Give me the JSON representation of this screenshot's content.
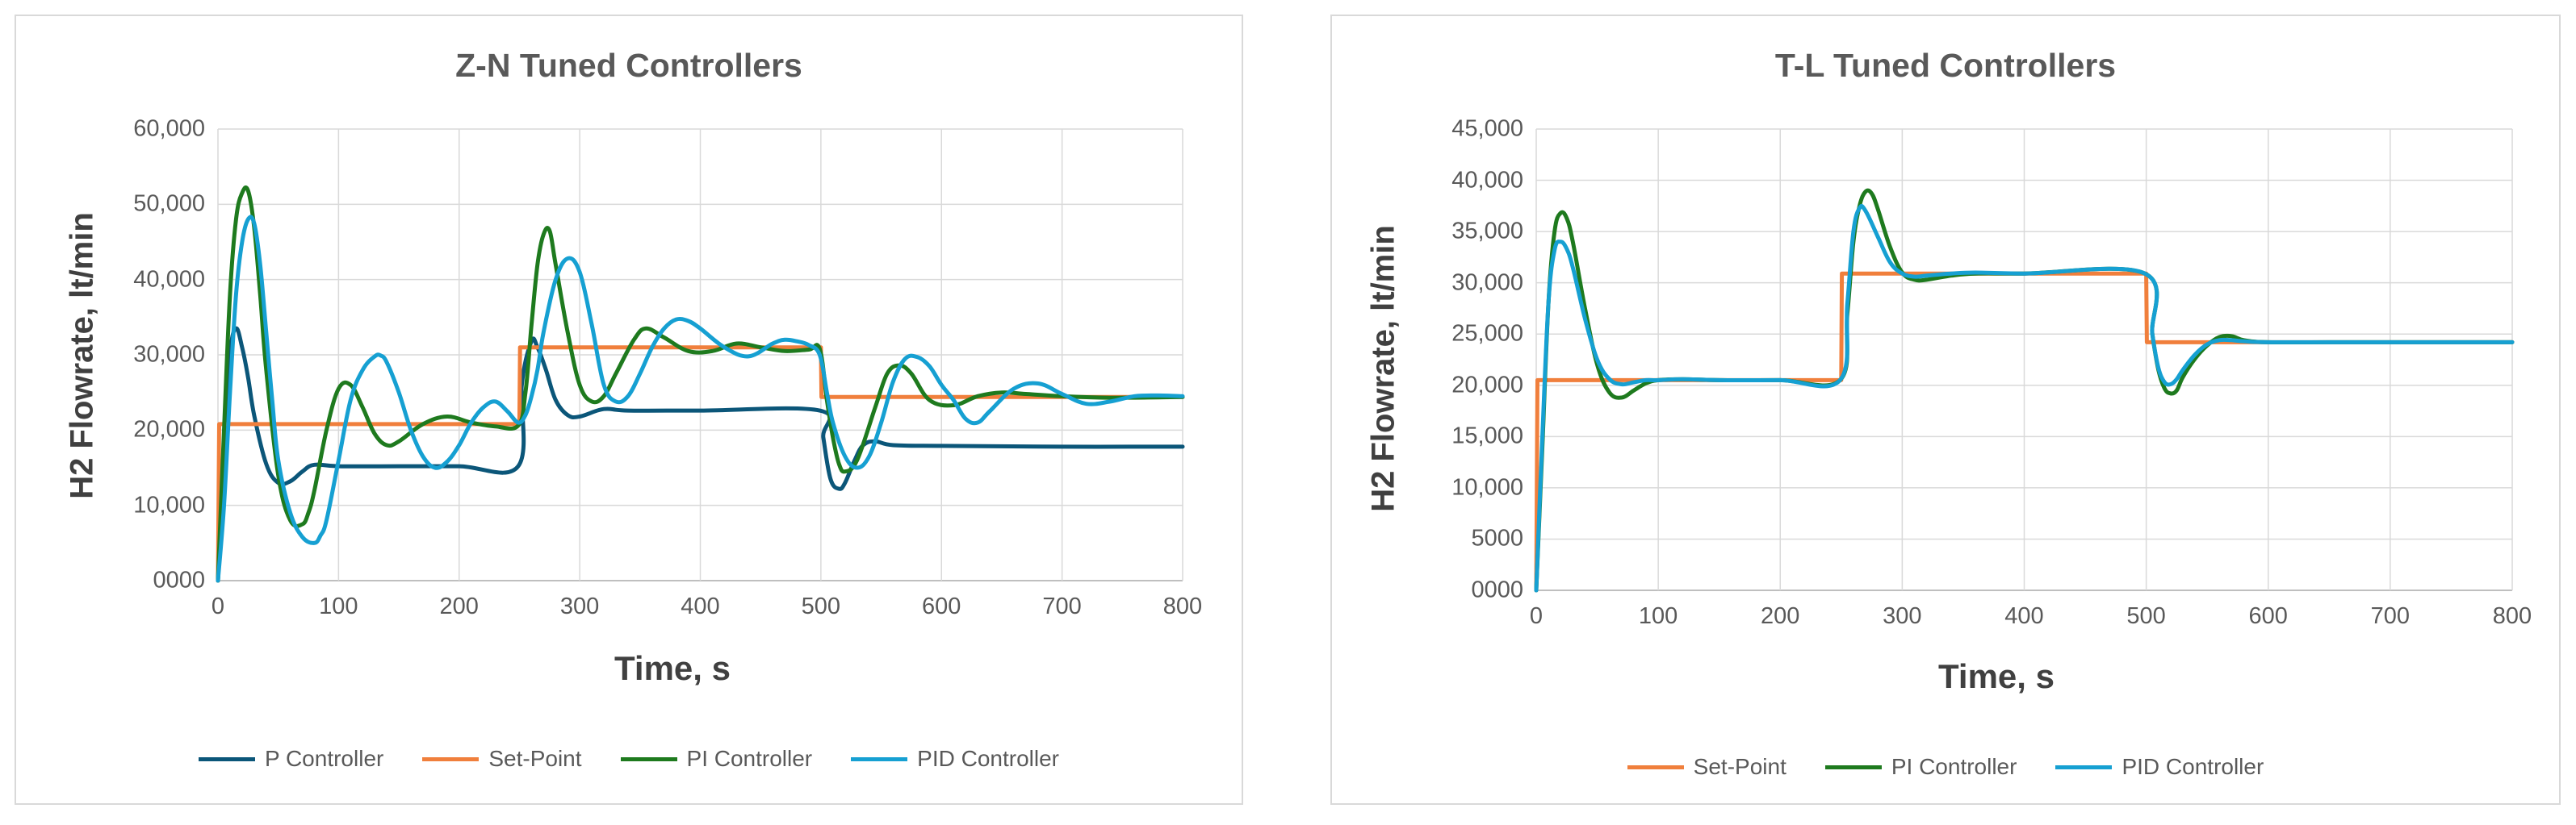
{
  "chart_data": [
    {
      "type": "line",
      "title": "Z-N Tuned Controllers",
      "xlabel": "Time, s",
      "ylabel": "H2 Flowrate, lt/min",
      "xlim": [
        0,
        800
      ],
      "ylim": [
        0,
        60000
      ],
      "xticks": [
        "0",
        "100",
        "200",
        "300",
        "400",
        "500",
        "600",
        "700",
        "800"
      ],
      "yticks": [
        "0000",
        "10,000",
        "20,000",
        "30,000",
        "40,000",
        "50,000",
        "60,000"
      ],
      "legend_position": "bottom",
      "series": [
        {
          "name": "P Controller",
          "color": "#0b5679",
          "x": [
            0,
            5,
            10,
            15,
            20,
            25,
            30,
            40,
            50,
            60,
            70,
            80,
            100,
            150,
            200,
            249,
            252,
            260,
            265,
            272,
            280,
            290,
            300,
            320,
            340,
            400,
            499,
            502,
            508,
            515,
            520,
            528,
            535,
            545,
            560,
            600,
            700,
            800
          ],
          "y": [
            0,
            17000,
            30000,
            33500,
            31000,
            27000,
            22000,
            15500,
            13000,
            13200,
            14500,
            15400,
            15200,
            15200,
            15200,
            15200,
            26000,
            31800,
            31000,
            28000,
            24000,
            22000,
            21800,
            22800,
            22600,
            22600,
            22600,
            19000,
            13500,
            12200,
            13000,
            16000,
            18000,
            18500,
            18000,
            17900,
            17800,
            17800
          ]
        },
        {
          "name": "Set-Point",
          "color": "#f07f3c",
          "x": [
            0,
            1,
            250,
            250.5,
            500,
            500.5,
            800
          ],
          "y": [
            0,
            20800,
            20800,
            31000,
            31000,
            24400,
            24400
          ]
        },
        {
          "name": "PI Controller",
          "color": "#1e7a1e",
          "x": [
            0,
            5,
            10,
            15,
            20,
            25,
            30,
            35,
            40,
            50,
            60,
            70,
            75,
            80,
            90,
            100,
            110,
            120,
            130,
            140,
            150,
            170,
            190,
            210,
            230,
            249,
            255,
            260,
            265,
            270,
            275,
            280,
            290,
            300,
            310,
            320,
            330,
            345,
            355,
            370,
            390,
            410,
            430,
            450,
            470,
            490,
            499,
            505,
            510,
            515,
            520,
            530,
            545,
            555,
            565,
            575,
            590,
            610,
            630,
            650,
            670,
            700,
            740,
            800
          ],
          "y": [
            0,
            20000,
            38000,
            48000,
            51500,
            51800,
            47000,
            38000,
            28000,
            14000,
            8000,
            7500,
            9000,
            12000,
            20000,
            25500,
            26000,
            23000,
            19500,
            18000,
            18500,
            20800,
            21800,
            21000,
            20500,
            20600,
            25000,
            34000,
            42000,
            46000,
            46500,
            42000,
            33000,
            26000,
            23800,
            24500,
            27500,
            32000,
            33500,
            32300,
            30500,
            30500,
            31500,
            31000,
            30500,
            30700,
            30800,
            24000,
            19000,
            15500,
            14500,
            16000,
            23000,
            27500,
            28600,
            27500,
            24000,
            23300,
            24500,
            25000,
            24800,
            24500,
            24300,
            24400
          ]
        },
        {
          "name": "PID Controller",
          "color": "#16a0d2",
          "x": [
            0,
            5,
            10,
            15,
            20,
            25,
            30,
            35,
            40,
            45,
            50,
            60,
            70,
            80,
            85,
            90,
            100,
            110,
            120,
            130,
            135,
            140,
            150,
            160,
            170,
            180,
            190,
            200,
            210,
            220,
            230,
            240,
            249,
            255,
            260,
            265,
            270,
            280,
            290,
            300,
            310,
            320,
            330,
            340,
            350,
            360,
            370,
            380,
            390,
            400,
            420,
            440,
            460,
            470,
            480,
            490,
            499,
            505,
            510,
            520,
            530,
            540,
            550,
            560,
            570,
            580,
            590,
            600,
            610,
            620,
            630,
            640,
            660,
            680,
            700,
            720,
            740,
            760,
            780,
            800
          ],
          "y": [
            0,
            10000,
            25000,
            38000,
            45000,
            48000,
            47500,
            42000,
            33000,
            24000,
            16000,
            9000,
            5800,
            5000,
            6000,
            8000,
            16000,
            24000,
            28000,
            29800,
            29900,
            29000,
            25000,
            20000,
            16500,
            15000,
            15800,
            18000,
            21000,
            23000,
            23800,
            22500,
            21000,
            22000,
            24500,
            28000,
            33000,
            40000,
            42800,
            41000,
            34000,
            26000,
            23800,
            24500,
            27500,
            31000,
            33500,
            34700,
            34500,
            33500,
            31000,
            29800,
            31500,
            32000,
            31800,
            31300,
            30000,
            25000,
            21000,
            16500,
            15000,
            16500,
            21000,
            26500,
            29500,
            29700,
            28500,
            26000,
            24000,
            21500,
            21000,
            22500,
            25500,
            26200,
            24800,
            23500,
            23800,
            24500,
            24600,
            24500
          ]
        }
      ]
    },
    {
      "type": "line",
      "title": "T-L Tuned Controllers",
      "xlabel": "Time, s",
      "ylabel": "H2 Flowrate, lt/min",
      "xlim": [
        0,
        800
      ],
      "ylim": [
        0,
        45000
      ],
      "xticks": [
        "0",
        "100",
        "200",
        "300",
        "400",
        "500",
        "600",
        "700",
        "800"
      ],
      "yticks": [
        "0000",
        "5000",
        "10,000",
        "15,000",
        "20,000",
        "25,000",
        "30,000",
        "35,000",
        "40,000",
        "45,000"
      ],
      "legend_position": "bottom",
      "series": [
        {
          "name": "Set-Point",
          "color": "#f07f3c",
          "x": [
            0,
            1,
            250,
            250.5,
            500,
            500.5,
            800
          ],
          "y": [
            0,
            20500,
            20500,
            30900,
            30900,
            24200,
            24200
          ]
        },
        {
          "name": "PI Controller",
          "color": "#1e7a1e",
          "x": [
            0,
            5,
            10,
            15,
            20,
            25,
            30,
            40,
            50,
            60,
            70,
            80,
            90,
            100,
            120,
            150,
            200,
            249,
            255,
            260,
            265,
            270,
            275,
            280,
            290,
            300,
            310,
            320,
            340,
            360,
            400,
            499,
            505,
            510,
            515,
            520,
            525,
            530,
            540,
            550,
            560,
            570,
            580,
            600,
            650,
            700,
            800
          ],
          "y": [
            0,
            14000,
            28000,
            35000,
            36800,
            36300,
            34000,
            27500,
            22000,
            19300,
            18800,
            19500,
            20200,
            20500,
            20600,
            20500,
            20500,
            20500,
            27000,
            34000,
            37500,
            38900,
            38700,
            37200,
            33500,
            31000,
            30300,
            30300,
            30700,
            30900,
            30900,
            30900,
            25000,
            21500,
            19700,
            19200,
            19500,
            20800,
            22600,
            23900,
            24700,
            24800,
            24400,
            24200,
            24200,
            24200,
            24200
          ]
        },
        {
          "name": "PID Controller",
          "color": "#16a0d2",
          "x": [
            0,
            5,
            10,
            15,
            20,
            25,
            30,
            40,
            50,
            60,
            70,
            80,
            90,
            100,
            120,
            150,
            200,
            249,
            255,
            260,
            265,
            270,
            280,
            290,
            300,
            310,
            320,
            340,
            360,
            400,
            499,
            505,
            510,
            515,
            520,
            525,
            530,
            540,
            550,
            560,
            570,
            580,
            600,
            650,
            700,
            800
          ],
          "y": [
            0,
            15000,
            28000,
            33200,
            34000,
            33300,
            31500,
            26500,
            22500,
            20600,
            20100,
            20300,
            20500,
            20500,
            20600,
            20500,
            20500,
            20500,
            28000,
            35000,
            37300,
            37000,
            34500,
            32000,
            30900,
            30600,
            30700,
            30900,
            31000,
            30900,
            30900,
            25000,
            21700,
            20300,
            20100,
            20600,
            21500,
            23000,
            24000,
            24400,
            24400,
            24300,
            24200,
            24200,
            24200,
            24200
          ]
        }
      ]
    }
  ]
}
